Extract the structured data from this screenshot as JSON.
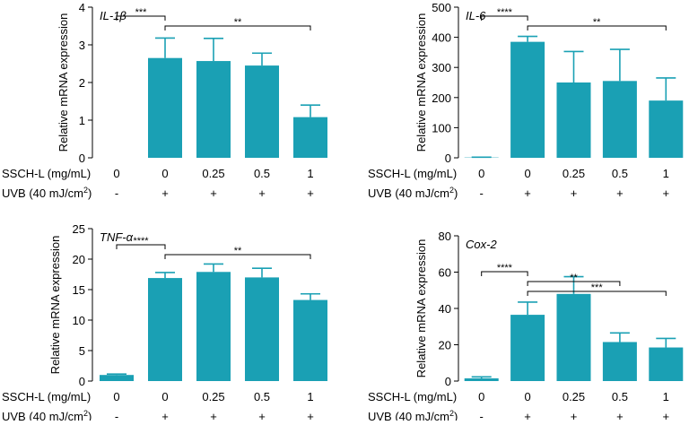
{
  "bar_color": "#1aa0b4",
  "row_labels": {
    "ssch": "SSCH-L (mg/mL)",
    "uvb_pre": "UVB (40 mJ/cm",
    "uvb_sup": "2",
    "uvb_post": ")"
  },
  "chart_data": [
    {
      "type": "bar",
      "title": "IL-1β",
      "ylabel": "Relative mRNA expression",
      "ylim": [
        0,
        4
      ],
      "yticks": [
        "0",
        "1",
        "2",
        "3",
        "4"
      ],
      "categories": [
        "0",
        "0",
        "0.25",
        "0.5",
        "1"
      ],
      "uvb": [
        "-",
        "+",
        "+",
        "+",
        "+"
      ],
      "values": [
        0.0,
        2.65,
        2.57,
        2.45,
        1.08
      ],
      "errors": [
        0.0,
        0.53,
        0.6,
        0.33,
        0.32
      ],
      "brackets": [
        {
          "from": 0,
          "to": 1,
          "label": "***"
        },
        {
          "from": 1,
          "to": 4,
          "label": "**"
        }
      ]
    },
    {
      "type": "bar",
      "title": "IL-6",
      "ylabel": "Relative mRNA expression",
      "ylim": [
        0,
        500
      ],
      "yticks": [
        "0",
        "100",
        "200",
        "300",
        "400",
        "500"
      ],
      "categories": [
        "0",
        "0",
        "0.25",
        "0.5",
        "1"
      ],
      "uvb": [
        "-",
        "+",
        "+",
        "+",
        "+"
      ],
      "values": [
        1,
        385,
        250,
        255,
        190
      ],
      "errors": [
        1,
        18,
        103,
        105,
        75
      ],
      "brackets": [
        {
          "from": 0,
          "to": 1,
          "label": "****"
        },
        {
          "from": 1,
          "to": 4,
          "label": "**"
        }
      ]
    },
    {
      "type": "bar",
      "title": "TNF-α",
      "ylabel": "Relative mRNA expression",
      "ylim": [
        0,
        25
      ],
      "yticks": [
        "0",
        "5",
        "10",
        "15",
        "20",
        "25"
      ],
      "categories": [
        "0",
        "0",
        "0.25",
        "0.5",
        "1"
      ],
      "uvb": [
        "-",
        "+",
        "+",
        "+",
        "+"
      ],
      "values": [
        1.0,
        16.9,
        17.9,
        17.0,
        13.3
      ],
      "errors": [
        0.15,
        0.9,
        1.3,
        1.5,
        1.0
      ],
      "brackets": [
        {
          "from": 0,
          "to": 1,
          "label": "****"
        },
        {
          "from": 1,
          "to": 4,
          "label": "**"
        }
      ]
    },
    {
      "type": "bar",
      "title": "Cox-2",
      "ylabel": "Relative mRNA expression",
      "ylim": [
        0,
        80
      ],
      "yticks": [
        "0",
        "20",
        "40",
        "60",
        "80"
      ],
      "categories": [
        "0",
        "0",
        "0.25",
        "0.5",
        "1"
      ],
      "uvb": [
        "-",
        "+",
        "+",
        "+",
        "+"
      ],
      "values": [
        1.5,
        36.5,
        48.0,
        21.5,
        18.5
      ],
      "errors": [
        0.8,
        7.0,
        9.5,
        5.0,
        5.0
      ],
      "brackets": [
        {
          "from": 0,
          "to": 1,
          "label": "****"
        },
        {
          "from": 1,
          "to": 3,
          "label": "**"
        },
        {
          "from": 1,
          "to": 4,
          "label": "***"
        }
      ]
    }
  ]
}
